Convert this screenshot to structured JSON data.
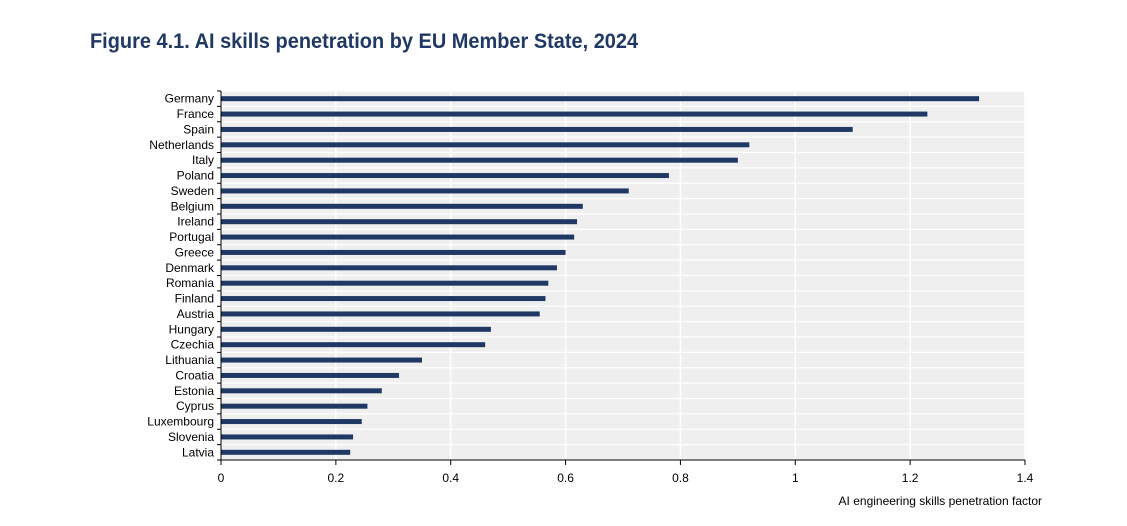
{
  "figure_title": "Figure 4.1. AI skills penetration by EU Member State, 2024",
  "colors": {
    "bar": "#1f3864",
    "plot_background": "#efefef",
    "grid": "#ffffff",
    "axis": "#000000",
    "title": "#1f3864"
  },
  "chart_data": {
    "type": "bar",
    "orientation": "horizontal",
    "title": "Figure 4.1. AI skills penetration by EU Member State, 2024",
    "xlabel": "AI engineering skills penetration factor",
    "ylabel": "",
    "xlim": [
      0,
      1.4
    ],
    "xticks": [
      0,
      0.2,
      0.4,
      0.6,
      0.8,
      1,
      1.2,
      1.4
    ],
    "xtick_labels": [
      "0",
      "0.2",
      "0.4",
      "0.6",
      "0.8",
      "1",
      "1.2",
      "1.4"
    ],
    "grid": true,
    "legend": "none",
    "categories": [
      "Germany",
      "France",
      "Spain",
      "Netherlands",
      "Italy",
      "Poland",
      "Sweden",
      "Belgium",
      "Ireland",
      "Portugal",
      "Greece",
      "Denmark",
      "Romania",
      "Finland",
      "Austria",
      "Hungary",
      "Czechia",
      "Lithuania",
      "Croatia",
      "Estonia",
      "Cyprus",
      "Luxembourg",
      "Slovenia",
      "Latvia"
    ],
    "values": [
      1.32,
      1.23,
      1.1,
      0.92,
      0.9,
      0.78,
      0.71,
      0.63,
      0.62,
      0.615,
      0.6,
      0.585,
      0.57,
      0.565,
      0.555,
      0.47,
      0.46,
      0.35,
      0.31,
      0.28,
      0.255,
      0.245,
      0.23,
      0.225
    ]
  }
}
